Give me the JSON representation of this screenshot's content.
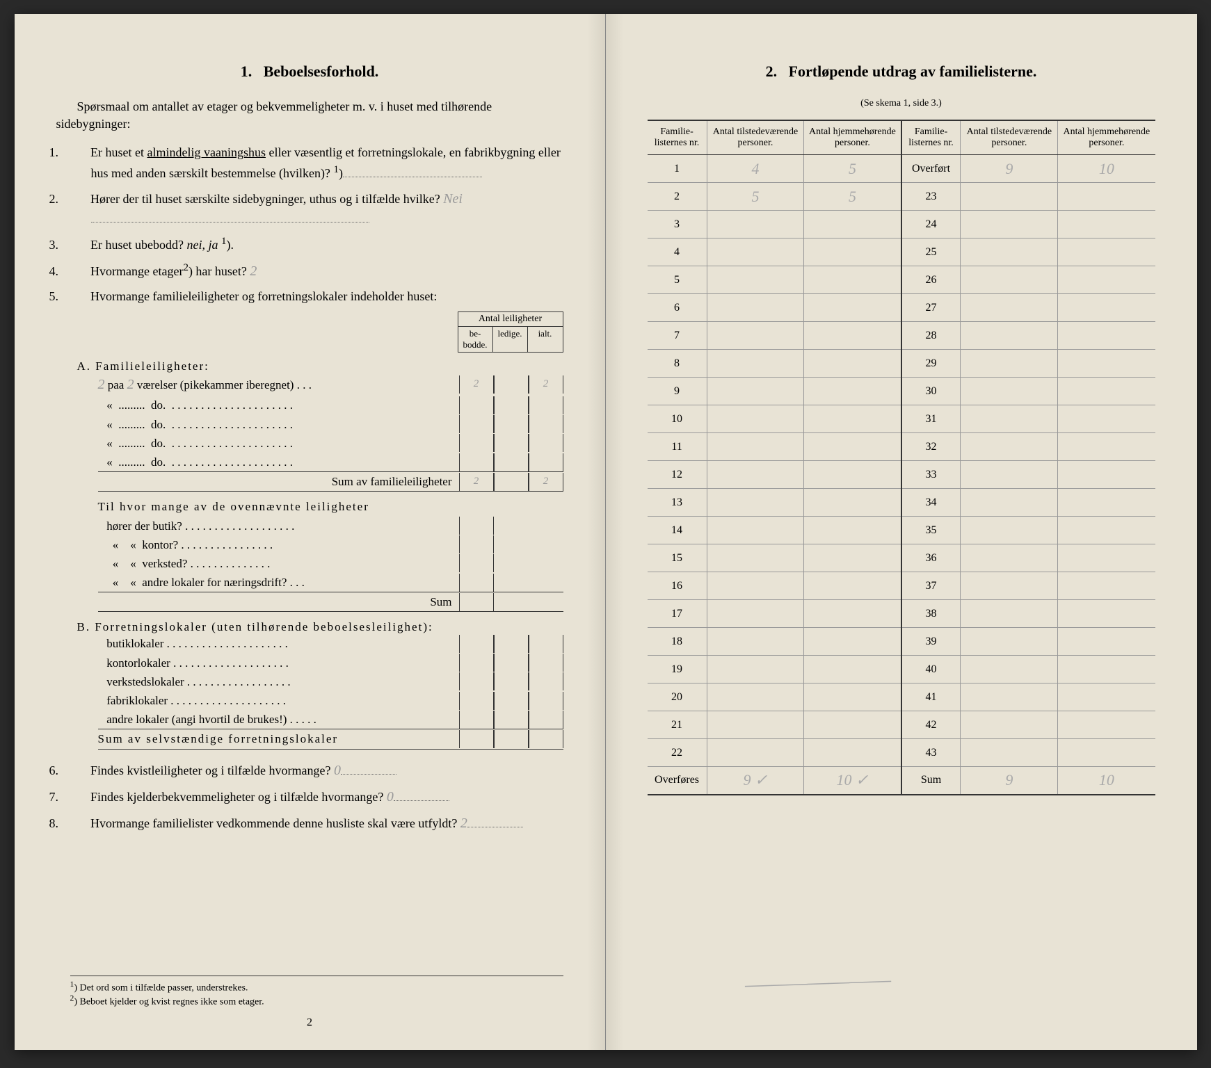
{
  "left": {
    "section_num": "1.",
    "section_title": "Beboelsesforhold.",
    "intro": "Spørsmaal om antallet av etager og bekvemmeligheter m. v. i huset med tilhørende sidebygninger:",
    "q1_num": "1.",
    "q1": "Er huset et ",
    "q1_underline": "almindelig vaaningshus",
    "q1_cont": " eller væsentlig et forretningslokale, en fabrikbygning eller hus med anden særskilt bestemmelse (hvilken)?",
    "q1_sup": "1",
    "q2_num": "2.",
    "q2": "Hører der til huset særskilte sidebygninger, uthus og i tilfælde hvilke?",
    "q2_answer": "Nei",
    "q3_num": "3.",
    "q3": "Er huset ubebodd? ",
    "q3_italic": "nei, ja",
    "q3_sup": "1",
    "q4_num": "4.",
    "q4": "Hvormange etager",
    "q4_sup": "2",
    "q4_cont": ") har huset?",
    "q4_answer": "2",
    "q5_num": "5.",
    "q5": "Hvormange familieleiligheter og forretningslokaler indeholder huset:",
    "leil_header_top": "Antal leiligheter",
    "leil_h1": "be-\nbodde.",
    "leil_h2": "ledige.",
    "leil_h3": "ialt.",
    "sectA": "A. Familieleiligheter:",
    "rowA1_hw": "2",
    "rowA1_text": "paa",
    "rowA1_hw2": "2",
    "rowA1_cont": "værelser (pikekammer iberegnet) . . .",
    "rowA1_c1": "2",
    "rowA1_c3": "2",
    "rowA_do": "do.",
    "rowA_sum": "Sum av familieleiligheter",
    "rowA_sum_c1": "2",
    "rowA_sum_c3": "2",
    "ovenn_intro": "Til hvor mange av de ovennævnte leiligheter",
    "ovenn_1": "hører der butik? . . . . . . . . . . . . . . . . . . .",
    "ovenn_2": "kontor? . . . . . . . . . . . . . . . .",
    "ovenn_3": "verksted? . . . . . . . . . . . . . .",
    "ovenn_4": "andre lokaler for næringsdrift? . . .",
    "ovenn_sum": "Sum",
    "sectB": "B. Forretningslokaler (uten tilhørende beboelsesleilighet):",
    "rowB1": "butiklokaler . . . . . . . . . . . . . . . . . . . . .",
    "rowB2": "kontorlokaler . . . . . . . . . . . . . . . . . . . .",
    "rowB3": "verkstedslokaler . . . . . . . . . . . . . . . . . .",
    "rowB4": "fabriklokaler . . . . . . . . . . . . . . . . . . . .",
    "rowB5": "andre lokaler (angi hvortil de brukes!) . . . . .",
    "rowB_sum": "Sum av selvstændige forretningslokaler",
    "q6_num": "6.",
    "q6": "Findes kvistleiligheter og i tilfælde hvormange?",
    "q6_answer": "0",
    "q7_num": "7.",
    "q7": "Findes kjelderbekvemmeligheter og i tilfælde hvormange?",
    "q7_answer": "0",
    "q8_num": "8.",
    "q8": "Hvormange familielister vedkommende denne husliste skal være utfyldt?",
    "q8_answer": "2",
    "fn1_sup": "1",
    "fn1": ") Det ord som i tilfælde passer, understrekes.",
    "fn2_sup": "2",
    "fn2": ") Beboet kjelder og kvist regnes ikke som etager.",
    "page_num": "2"
  },
  "right": {
    "section_num": "2.",
    "section_title": "Fortløpende utdrag av familielisterne.",
    "subtitle": "(Se skema 1, side 3.)",
    "h1": "Familie-\nlisternes\nnr.",
    "h2": "Antal\ntilstedeværende\npersoner.",
    "h3": "Antal\nhjemmehørende\npersoner.",
    "rows_left": [
      {
        "n": "1",
        "a": "4",
        "b": "5"
      },
      {
        "n": "2",
        "a": "5",
        "b": "5"
      },
      {
        "n": "3",
        "a": "",
        "b": ""
      },
      {
        "n": "4",
        "a": "",
        "b": ""
      },
      {
        "n": "5",
        "a": "",
        "b": ""
      },
      {
        "n": "6",
        "a": "",
        "b": ""
      },
      {
        "n": "7",
        "a": "",
        "b": ""
      },
      {
        "n": "8",
        "a": "",
        "b": ""
      },
      {
        "n": "9",
        "a": "",
        "b": ""
      },
      {
        "n": "10",
        "a": "",
        "b": ""
      },
      {
        "n": "11",
        "a": "",
        "b": ""
      },
      {
        "n": "12",
        "a": "",
        "b": ""
      },
      {
        "n": "13",
        "a": "",
        "b": ""
      },
      {
        "n": "14",
        "a": "",
        "b": ""
      },
      {
        "n": "15",
        "a": "",
        "b": ""
      },
      {
        "n": "16",
        "a": "",
        "b": ""
      },
      {
        "n": "17",
        "a": "",
        "b": ""
      },
      {
        "n": "18",
        "a": "",
        "b": ""
      },
      {
        "n": "19",
        "a": "",
        "b": ""
      },
      {
        "n": "20",
        "a": "",
        "b": ""
      },
      {
        "n": "21",
        "a": "",
        "b": ""
      },
      {
        "n": "22",
        "a": "",
        "b": ""
      }
    ],
    "rows_right": [
      {
        "n": "Overført",
        "a": "9",
        "b": "10"
      },
      {
        "n": "23",
        "a": "",
        "b": ""
      },
      {
        "n": "24",
        "a": "",
        "b": ""
      },
      {
        "n": "25",
        "a": "",
        "b": ""
      },
      {
        "n": "26",
        "a": "",
        "b": ""
      },
      {
        "n": "27",
        "a": "",
        "b": ""
      },
      {
        "n": "28",
        "a": "",
        "b": ""
      },
      {
        "n": "29",
        "a": "",
        "b": ""
      },
      {
        "n": "30",
        "a": "",
        "b": ""
      },
      {
        "n": "31",
        "a": "",
        "b": ""
      },
      {
        "n": "32",
        "a": "",
        "b": ""
      },
      {
        "n": "33",
        "a": "",
        "b": ""
      },
      {
        "n": "34",
        "a": "",
        "b": ""
      },
      {
        "n": "35",
        "a": "",
        "b": ""
      },
      {
        "n": "36",
        "a": "",
        "b": ""
      },
      {
        "n": "37",
        "a": "",
        "b": ""
      },
      {
        "n": "38",
        "a": "",
        "b": ""
      },
      {
        "n": "39",
        "a": "",
        "b": ""
      },
      {
        "n": "40",
        "a": "",
        "b": ""
      },
      {
        "n": "41",
        "a": "",
        "b": ""
      },
      {
        "n": "42",
        "a": "",
        "b": ""
      },
      {
        "n": "43",
        "a": "",
        "b": ""
      }
    ],
    "overfores_label": "Overføres",
    "overfores_a": "9",
    "overfores_b": "10",
    "sum_label": "Sum",
    "sum_a": "9",
    "sum_b": "10",
    "check": "✓"
  }
}
